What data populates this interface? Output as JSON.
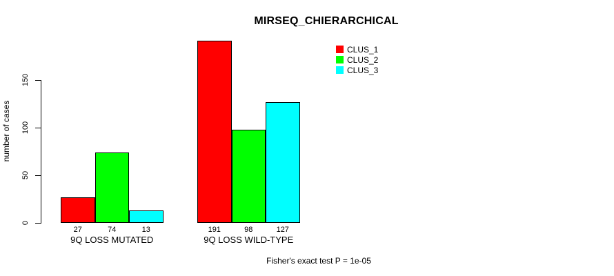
{
  "chart_data": {
    "type": "bar",
    "title": "MIRSEQ_CHIERARCHICAL",
    "ylabel": "number of cases",
    "xlabel": "",
    "categories": [
      "9Q LOSS MUTATED",
      "9Q LOSS WILD-TYPE"
    ],
    "series": [
      {
        "name": "CLUS_1",
        "color": "#ff0000",
        "values": [
          27,
          191
        ]
      },
      {
        "name": "CLUS_2",
        "color": "#00ff00",
        "values": [
          74,
          98
        ]
      },
      {
        "name": "CLUS_3",
        "color": "#00ffff",
        "values": [
          13,
          127
        ]
      }
    ],
    "yticks": [
      0,
      50,
      100,
      150
    ],
    "ylim": [
      0,
      195
    ],
    "grid": false,
    "bar_value_labels_shown": true,
    "legend_position": "top-right",
    "legend_frame": false,
    "annotation": "Fisher's exact test P = 1e-05"
  },
  "colors": {
    "background": "#ffffff",
    "axis": "#000000",
    "bar_border": "#000000",
    "text": "#000000"
  }
}
